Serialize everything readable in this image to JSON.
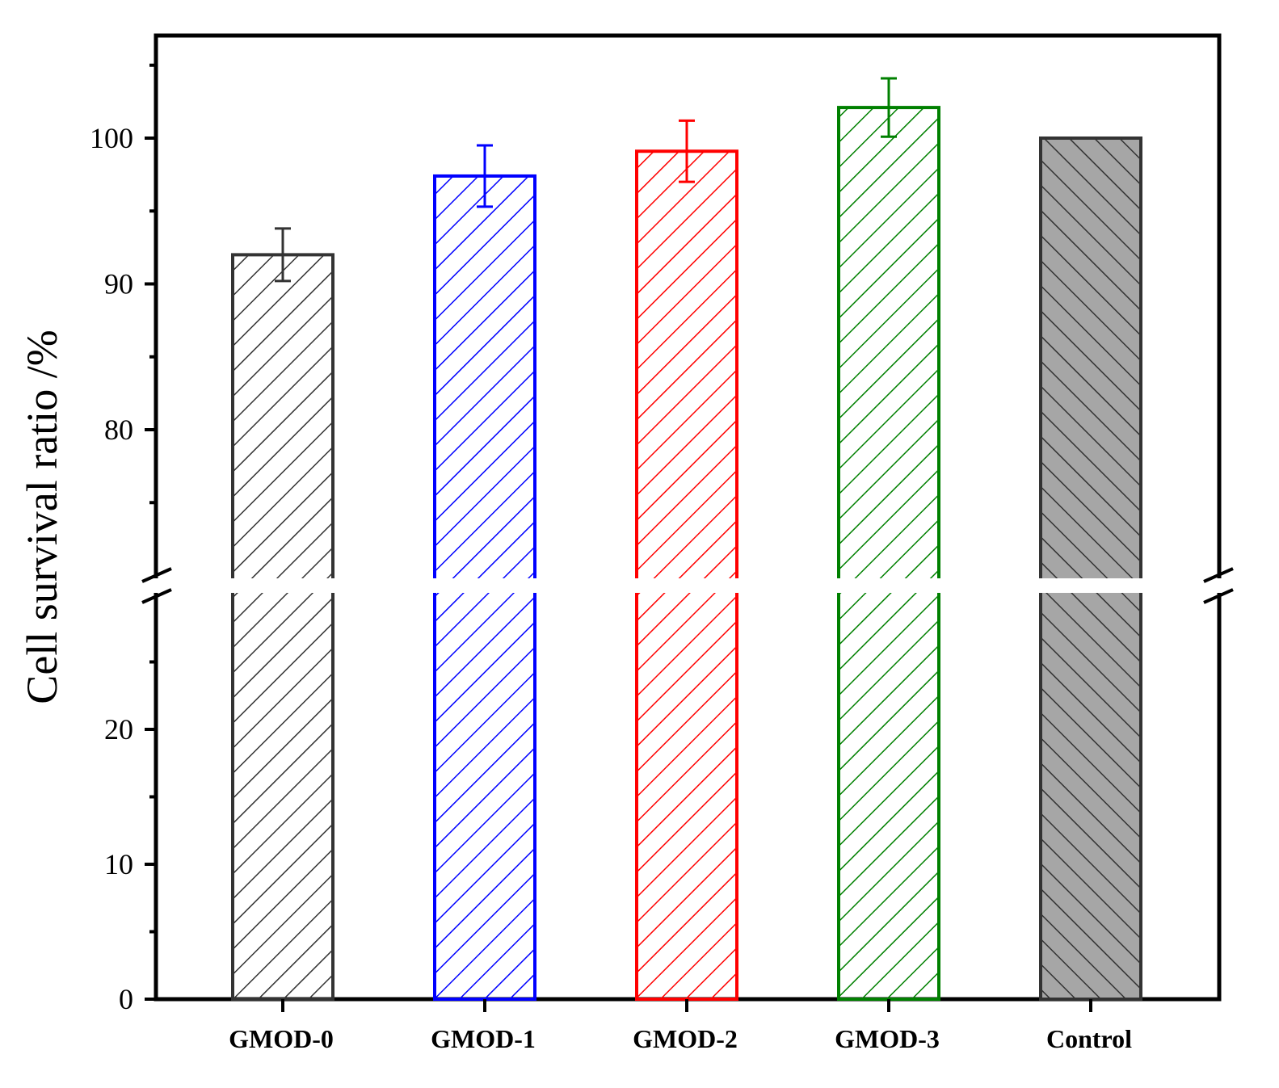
{
  "chart_data": {
    "type": "bar",
    "title": "",
    "xlabel": "",
    "ylabel": "Cell survival ratio /%",
    "categories": [
      "GMOD-0",
      "GMOD-1",
      "GMOD-2",
      "GMOD-3",
      "Control"
    ],
    "values": [
      92.0,
      97.4,
      99.1,
      102.1,
      100.0
    ],
    "errors": [
      1.8,
      2.1,
      2.1,
      2.0,
      0
    ],
    "colors": [
      "#333333",
      "#0000ff",
      "#ff0000",
      "#008000",
      "#333333"
    ],
    "fills": [
      "none",
      "none",
      "none",
      "none",
      "#a6a6a6"
    ],
    "y_axis_break": {
      "lower_segment": [
        0,
        30
      ],
      "upper_segment": [
        70,
        107
      ]
    },
    "lower_ticks": [
      0,
      10,
      20
    ],
    "upper_ticks": [
      80,
      90,
      100
    ],
    "grid": false,
    "legend": "none"
  }
}
